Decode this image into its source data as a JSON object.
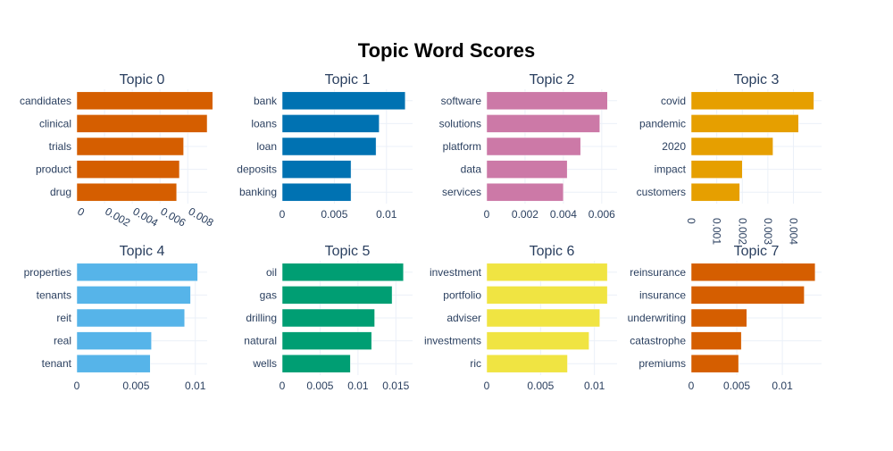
{
  "title": "Topic Word Scores",
  "chart_data": [
    {
      "type": "bar",
      "orientation": "horizontal",
      "title": "Topic 0",
      "color": "#D55E00",
      "categories": [
        "candidates",
        "clinical",
        "trials",
        "product",
        "drug"
      ],
      "values": [
        0.0098,
        0.0094,
        0.0077,
        0.0074,
        0.0072
      ],
      "ticks": [
        0,
        0.002,
        0.004,
        0.006,
        0.008
      ],
      "tick_labels": [
        "0",
        "0.002",
        "0.004",
        "0.006",
        "0.008"
      ],
      "xlim": [
        0,
        0.0094
      ],
      "tick_angle": 30
    },
    {
      "type": "bar",
      "orientation": "horizontal",
      "title": "Topic 1",
      "color": "#0072B2",
      "categories": [
        "bank",
        "loans",
        "loan",
        "deposits",
        "banking"
      ],
      "values": [
        0.0118,
        0.0093,
        0.009,
        0.0066,
        0.0066
      ],
      "ticks": [
        0,
        0.005,
        0.01
      ],
      "tick_labels": [
        "0",
        "0.005",
        "0.01"
      ],
      "xlim": [
        0,
        0.0125
      ],
      "tick_angle": 0
    },
    {
      "type": "bar",
      "orientation": "horizontal",
      "title": "Topic 2",
      "color": "#CC79A7",
      "categories": [
        "software",
        "solutions",
        "platform",
        "data",
        "services"
      ],
      "values": [
        0.0063,
        0.0059,
        0.0049,
        0.0042,
        0.004
      ],
      "ticks": [
        0,
        0.002,
        0.004,
        0.006
      ],
      "tick_labels": [
        "0",
        "0.002",
        "0.004",
        "0.006"
      ],
      "xlim": [
        0,
        0.0068
      ],
      "tick_angle": 0
    },
    {
      "type": "bar",
      "orientation": "horizontal",
      "title": "Topic 3",
      "color": "#E69F00",
      "categories": [
        "covid",
        "pandemic",
        "2020",
        "impact",
        "customers"
      ],
      "values": [
        0.0048,
        0.0042,
        0.0032,
        0.002,
        0.0019
      ],
      "ticks": [
        0,
        0.001,
        0.002,
        0.003,
        0.004
      ],
      "tick_labels": [
        "0",
        "0.001",
        "0.002",
        "0.003",
        "0.004"
      ],
      "xlim": [
        0,
        0.0051
      ],
      "tick_angle": 90
    },
    {
      "type": "bar",
      "orientation": "horizontal",
      "title": "Topic 4",
      "color": "#56B4E9",
      "categories": [
        "properties",
        "tenants",
        "reit",
        "real",
        "tenant"
      ],
      "values": [
        0.0102,
        0.0096,
        0.0091,
        0.0063,
        0.0062
      ],
      "ticks": [
        0,
        0.005,
        0.01
      ],
      "tick_labels": [
        "0",
        "0.005",
        "0.01"
      ],
      "xlim": [
        0,
        0.011
      ],
      "tick_angle": 0
    },
    {
      "type": "bar",
      "orientation": "horizontal",
      "title": "Topic 5",
      "color": "#009E73",
      "categories": [
        "oil",
        "gas",
        "drilling",
        "natural",
        "wells"
      ],
      "values": [
        0.016,
        0.0145,
        0.0122,
        0.0118,
        0.009
      ],
      "ticks": [
        0,
        0.005,
        0.01,
        0.015
      ],
      "tick_labels": [
        "0",
        "0.005",
        "0.01",
        "0.015"
      ],
      "xlim": [
        0,
        0.0172
      ],
      "tick_angle": 0
    },
    {
      "type": "bar",
      "orientation": "horizontal",
      "title": "Topic 6",
      "color": "#F0E442",
      "categories": [
        "investment",
        "portfolio",
        "adviser",
        "investments",
        "ric"
      ],
      "values": [
        0.0112,
        0.0112,
        0.0105,
        0.0095,
        0.0075
      ],
      "ticks": [
        0,
        0.005,
        0.01
      ],
      "tick_labels": [
        "0",
        "0.005",
        "0.01"
      ],
      "xlim": [
        0,
        0.0121
      ],
      "tick_angle": 0
    },
    {
      "type": "bar",
      "orientation": "horizontal",
      "title": "Topic 7",
      "color": "#D55E00",
      "categories": [
        "reinsurance",
        "insurance",
        "underwriting",
        "catastrophe",
        "premiums"
      ],
      "values": [
        0.0136,
        0.0124,
        0.0061,
        0.0055,
        0.0052
      ],
      "ticks": [
        0,
        0.005,
        0.01
      ],
      "tick_labels": [
        "0",
        "0.005",
        "0.01"
      ],
      "xlim": [
        0,
        0.0143
      ],
      "tick_angle": 0
    }
  ]
}
